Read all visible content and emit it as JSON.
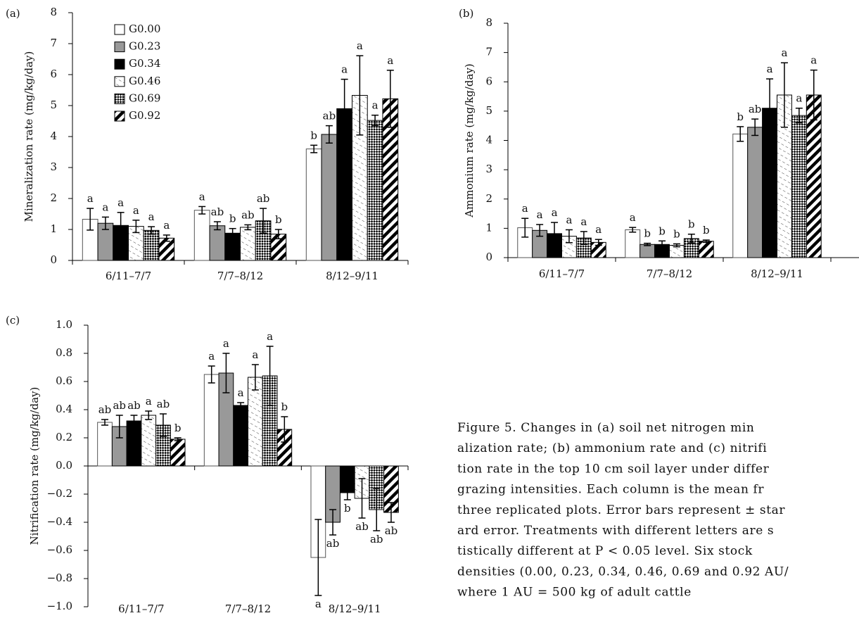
{
  "chart_data": [
    {
      "type": "bar",
      "panel": "(a)",
      "ylabel": "Mineralization rate (mg/kg/day)",
      "categories": [
        "6/11–7/7",
        "7/7–8/12",
        "8/12–9/11"
      ],
      "ylim": [
        0,
        8
      ],
      "yticks": [
        0,
        1,
        2,
        3,
        4,
        5,
        6,
        7,
        8
      ],
      "legend": "top-left",
      "series": [
        {
          "name": "G0.00",
          "color": "#ffffff",
          "values": [
            1.33,
            1.62,
            3.6
          ],
          "errors": [
            0.35,
            0.12,
            0.12
          ],
          "letters": [
            "a",
            "a",
            "b"
          ]
        },
        {
          "name": "G0.23",
          "color": "#999999",
          "values": [
            1.2,
            1.12,
            4.07
          ],
          "errors": [
            0.2,
            0.13,
            0.28
          ],
          "letters": [
            "a",
            "ab",
            "ab"
          ]
        },
        {
          "name": "G0.34",
          "color": "#000000",
          "values": [
            1.13,
            0.88,
            4.9
          ],
          "errors": [
            0.42,
            0.15,
            0.95
          ],
          "letters": [
            "a",
            "b",
            "a"
          ]
        },
        {
          "name": "G0.46",
          "color": "#ffffff",
          "pattern": "dash",
          "values": [
            1.1,
            1.07,
            5.33
          ],
          "errors": [
            0.2,
            0.08,
            1.28
          ],
          "letters": [
            "a",
            "ab",
            "a"
          ]
        },
        {
          "name": "G0.69",
          "color": "#000000",
          "pattern": "check",
          "values": [
            0.97,
            1.28,
            4.52
          ],
          "errors": [
            0.12,
            0.4,
            0.17
          ],
          "letters": [
            "a",
            "ab",
            "a"
          ]
        },
        {
          "name": "G0.92",
          "color": "#000000",
          "pattern": "stripe",
          "values": [
            0.72,
            0.85,
            5.22
          ],
          "errors": [
            0.1,
            0.15,
            0.92
          ],
          "letters": [
            "a",
            "b",
            "a"
          ]
        }
      ]
    },
    {
      "type": "bar",
      "panel": "(b)",
      "ylabel": "Ammonium rate (mg/kg/day)",
      "categories": [
        "6/11–7/7",
        "7/7–8/12",
        "8/12–9/11"
      ],
      "ylim": [
        0,
        8
      ],
      "yticks": [
        0,
        1,
        2,
        3,
        4,
        5,
        6,
        7,
        8
      ],
      "series": [
        {
          "color": "#ffffff",
          "values": [
            1.02,
            0.95,
            4.22
          ],
          "errors": [
            0.32,
            0.08,
            0.25
          ],
          "letters": [
            "a",
            "a",
            "b"
          ]
        },
        {
          "color": "#999999",
          "values": [
            0.93,
            0.45,
            4.45
          ],
          "errors": [
            0.2,
            0.04,
            0.28
          ],
          "letters": [
            "a",
            "b",
            "ab"
          ]
        },
        {
          "color": "#000000",
          "values": [
            0.82,
            0.45,
            5.1
          ],
          "errors": [
            0.38,
            0.12,
            1.0
          ],
          "letters": [
            "a",
            "b",
            "a"
          ]
        },
        {
          "color": "#ffffff",
          "pattern": "dash",
          "values": [
            0.73,
            0.42,
            5.55
          ],
          "errors": [
            0.22,
            0.05,
            1.1
          ],
          "letters": [
            "a",
            "b",
            "a"
          ]
        },
        {
          "color": "#000000",
          "pattern": "check",
          "values": [
            0.67,
            0.65,
            4.85
          ],
          "errors": [
            0.22,
            0.15,
            0.25
          ],
          "letters": [
            "a",
            "b",
            "a"
          ]
        },
        {
          "color": "#000000",
          "pattern": "stripe",
          "values": [
            0.52,
            0.56,
            5.55
          ],
          "errors": [
            0.1,
            0.04,
            0.85
          ],
          "letters": [
            "a",
            "b",
            "a"
          ]
        }
      ]
    },
    {
      "type": "bar",
      "panel": "(c)",
      "ylabel": "Nitrification rate (mg/kg/day)",
      "categories": [
        "6/11–7/7",
        "7/7–8/12",
        "8/12–9/11"
      ],
      "ylim": [
        -1,
        1
      ],
      "yticks": [
        {
          "value": -1,
          "label": "−1.0"
        },
        {
          "value": -0.8,
          "label": "−0.8"
        },
        {
          "value": -0.6,
          "label": "−0.6"
        },
        {
          "value": -0.4,
          "label": "−0.4"
        },
        {
          "value": -0.2,
          "label": "−0.2"
        },
        {
          "value": 0,
          "label": "0.0"
        },
        {
          "value": 0.2,
          "label": "0.2"
        },
        {
          "value": 0.4,
          "label": "0.4"
        },
        {
          "value": 0.6,
          "label": "0.6"
        },
        {
          "value": 0.8,
          "label": "0.8"
        },
        {
          "value": 1,
          "label": "1.0"
        }
      ],
      "series": [
        {
          "color": "#ffffff",
          "values": [
            0.31,
            0.65,
            -0.65
          ],
          "errors": [
            0.02,
            0.06,
            0.27
          ],
          "letters": [
            "ab",
            "a",
            "a"
          ]
        },
        {
          "color": "#999999",
          "values": [
            0.28,
            0.66,
            -0.4
          ],
          "errors": [
            0.08,
            0.14,
            0.09
          ],
          "letters": [
            "ab",
            "a",
            "ab"
          ]
        },
        {
          "color": "#000000",
          "values": [
            0.32,
            0.43,
            -0.19
          ],
          "errors": [
            0.04,
            0.02,
            0.05
          ],
          "letters": [
            "ab",
            "a",
            "b"
          ]
        },
        {
          "color": "#ffffff",
          "pattern": "dash",
          "values": [
            0.36,
            0.63,
            -0.23
          ],
          "errors": [
            0.03,
            0.09,
            0.14
          ],
          "letters": [
            "a",
            "a",
            "ab"
          ]
        },
        {
          "color": "#000000",
          "pattern": "check",
          "values": [
            0.29,
            0.64,
            -0.31
          ],
          "errors": [
            0.08,
            0.21,
            0.15
          ],
          "letters": [
            "ab",
            "a",
            "ab"
          ]
        },
        {
          "color": "#000000",
          "pattern": "stripe",
          "values": [
            0.19,
            0.26,
            -0.33
          ],
          "errors": [
            0.01,
            0.09,
            0.07
          ],
          "letters": [
            "b",
            "b",
            "ab"
          ]
        }
      ]
    }
  ],
  "caption": {
    "lines": [
      "Figure 5. Changes in (a) soil net nitrogen min",
      "alization rate; (b) ammonium rate and (c) nitrifi",
      "tion rate in the top 10 cm soil layer under differ",
      "grazing intensities. Each column is the mean fr",
      "three replicated plots. Error bars represent ± star",
      "ard error. Treatments with different letters are s",
      "tistically different at P < 0.05 level. Six stock",
      "densities (0.00, 0.23, 0.34, 0.46, 0.69 and 0.92 AU/",
      "where 1 AU = 500 kg of adult cattle"
    ]
  }
}
